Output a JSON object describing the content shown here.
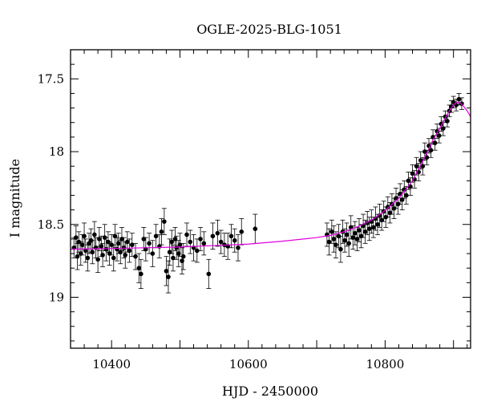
{
  "chart_data": {
    "type": "scatter",
    "title": "OGLE-2025-BLG-1051",
    "xlabel": "HJD - 2450000",
    "ylabel": "I magnitude",
    "xlim": [
      10340,
      10925
    ],
    "ylim": [
      19.35,
      17.3
    ],
    "y_inverted": true,
    "grid": false,
    "x_ticks": [
      10400,
      10600,
      10800
    ],
    "x_tick_labels": [
      "10400",
      "10600",
      "10800"
    ],
    "y_ticks": [
      17.5,
      18,
      18.5,
      19
    ],
    "y_tick_labels": [
      "17.5",
      "18",
      "18.5",
      "19"
    ],
    "colors": {
      "points": "#000000",
      "model": "#e000e0",
      "frame": "#000000"
    },
    "series": [
      {
        "kind": "points_with_errorbars",
        "points": [
          [
            10345,
            18.66,
            0.07
          ],
          [
            10348,
            18.59,
            0.08
          ],
          [
            10350,
            18.72,
            0.09
          ],
          [
            10352,
            18.62,
            0.07
          ],
          [
            10355,
            18.7,
            0.08
          ],
          [
            10357,
            18.64,
            0.07
          ],
          [
            10360,
            18.58,
            0.09
          ],
          [
            10362,
            18.68,
            0.08
          ],
          [
            10365,
            18.73,
            0.09
          ],
          [
            10367,
            18.63,
            0.07
          ],
          [
            10370,
            18.61,
            0.08
          ],
          [
            10372,
            18.69,
            0.08
          ],
          [
            10375,
            18.57,
            0.09
          ],
          [
            10377,
            18.66,
            0.07
          ],
          [
            10380,
            18.74,
            0.09
          ],
          [
            10382,
            18.6,
            0.08
          ],
          [
            10385,
            18.65,
            0.07
          ],
          [
            10387,
            18.71,
            0.08
          ],
          [
            10390,
            18.59,
            0.09
          ],
          [
            10392,
            18.67,
            0.08
          ],
          [
            10395,
            18.62,
            0.07
          ],
          [
            10397,
            18.7,
            0.08
          ],
          [
            10400,
            18.64,
            0.07
          ],
          [
            10403,
            18.73,
            0.09
          ],
          [
            10405,
            18.58,
            0.08
          ],
          [
            10408,
            18.67,
            0.08
          ],
          [
            10410,
            18.63,
            0.07
          ],
          [
            10413,
            18.69,
            0.08
          ],
          [
            10415,
            18.6,
            0.08
          ],
          [
            10418,
            18.66,
            0.07
          ],
          [
            10420,
            18.71,
            0.09
          ],
          [
            10423,
            18.62,
            0.07
          ],
          [
            10426,
            18.68,
            0.08
          ],
          [
            10430,
            18.64,
            0.08
          ],
          [
            10435,
            18.72,
            0.09
          ],
          [
            10440,
            18.8,
            0.1
          ],
          [
            10443,
            18.84,
            0.1
          ],
          [
            10447,
            18.6,
            0.08
          ],
          [
            10450,
            18.67,
            0.08
          ],
          [
            10455,
            18.63,
            0.07
          ],
          [
            10460,
            18.7,
            0.09
          ],
          [
            10465,
            18.58,
            0.08
          ],
          [
            10470,
            18.65,
            0.08
          ],
          [
            10473,
            18.55,
            0.09
          ],
          [
            10477,
            18.48,
            0.09
          ],
          [
            10480,
            18.82,
            0.1
          ],
          [
            10483,
            18.86,
            0.11
          ],
          [
            10485,
            18.69,
            0.09
          ],
          [
            10488,
            18.62,
            0.08
          ],
          [
            10490,
            18.73,
            0.09
          ],
          [
            10493,
            18.6,
            0.08
          ],
          [
            10495,
            18.66,
            0.08
          ],
          [
            10498,
            18.7,
            0.09
          ],
          [
            10500,
            18.64,
            0.08
          ],
          [
            10503,
            18.75,
            0.09
          ],
          [
            10505,
            18.72,
            0.09
          ],
          [
            10510,
            18.57,
            0.08
          ],
          [
            10515,
            18.62,
            0.08
          ],
          [
            10520,
            18.66,
            0.09
          ],
          [
            10525,
            18.68,
            0.08
          ],
          [
            10530,
            18.6,
            0.08
          ],
          [
            10535,
            18.63,
            0.08
          ],
          [
            10542,
            18.84,
            0.1
          ],
          [
            10548,
            18.58,
            0.09
          ],
          [
            10555,
            18.56,
            0.09
          ],
          [
            10560,
            18.62,
            0.08
          ],
          [
            10565,
            18.64,
            0.08
          ],
          [
            10570,
            18.65,
            0.09
          ],
          [
            10575,
            18.58,
            0.08
          ],
          [
            10580,
            18.61,
            0.08
          ],
          [
            10585,
            18.66,
            0.09
          ],
          [
            10590,
            18.55,
            0.09
          ],
          [
            10610,
            18.53,
            0.1
          ],
          [
            10715,
            18.57,
            0.08
          ],
          [
            10718,
            18.62,
            0.09
          ],
          [
            10722,
            18.55,
            0.08
          ],
          [
            10725,
            18.6,
            0.09
          ],
          [
            10728,
            18.64,
            0.09
          ],
          [
            10732,
            18.58,
            0.08
          ],
          [
            10735,
            18.67,
            0.09
          ],
          [
            10738,
            18.55,
            0.08
          ],
          [
            10741,
            18.61,
            0.08
          ],
          [
            10744,
            18.57,
            0.08
          ],
          [
            10747,
            18.63,
            0.09
          ],
          [
            10750,
            18.52,
            0.08
          ],
          [
            10753,
            18.59,
            0.08
          ],
          [
            10756,
            18.56,
            0.08
          ],
          [
            10759,
            18.6,
            0.08
          ],
          [
            10762,
            18.54,
            0.08
          ],
          [
            10765,
            18.58,
            0.08
          ],
          [
            10768,
            18.51,
            0.08
          ],
          [
            10771,
            18.55,
            0.08
          ],
          [
            10774,
            18.49,
            0.08
          ],
          [
            10777,
            18.53,
            0.08
          ],
          [
            10780,
            18.48,
            0.08
          ],
          [
            10783,
            18.52,
            0.07
          ],
          [
            10786,
            18.46,
            0.08
          ],
          [
            10789,
            18.5,
            0.07
          ],
          [
            10792,
            18.44,
            0.08
          ],
          [
            10795,
            18.47,
            0.07
          ],
          [
            10798,
            18.41,
            0.07
          ],
          [
            10801,
            18.45,
            0.07
          ],
          [
            10804,
            18.38,
            0.07
          ],
          [
            10807,
            18.42,
            0.07
          ],
          [
            10810,
            18.36,
            0.07
          ],
          [
            10813,
            18.39,
            0.07
          ],
          [
            10816,
            18.32,
            0.07
          ],
          [
            10819,
            18.36,
            0.07
          ],
          [
            10822,
            18.29,
            0.07
          ],
          [
            10825,
            18.33,
            0.07
          ],
          [
            10828,
            18.26,
            0.06
          ],
          [
            10831,
            18.3,
            0.06
          ],
          [
            10834,
            18.2,
            0.06
          ],
          [
            10837,
            18.24,
            0.06
          ],
          [
            10840,
            18.15,
            0.06
          ],
          [
            10843,
            18.19,
            0.06
          ],
          [
            10846,
            18.1,
            0.06
          ],
          [
            10849,
            18.14,
            0.06
          ],
          [
            10852,
            18.06,
            0.06
          ],
          [
            10855,
            18.1,
            0.06
          ],
          [
            10858,
            18.0,
            0.06
          ],
          [
            10861,
            18.04,
            0.05
          ],
          [
            10864,
            17.96,
            0.05
          ],
          [
            10867,
            17.99,
            0.05
          ],
          [
            10870,
            17.9,
            0.05
          ],
          [
            10873,
            17.94,
            0.05
          ],
          [
            10876,
            17.86,
            0.05
          ],
          [
            10879,
            17.89,
            0.05
          ],
          [
            10882,
            17.81,
            0.05
          ],
          [
            10885,
            17.84,
            0.05
          ],
          [
            10888,
            17.76,
            0.04
          ],
          [
            10891,
            17.79,
            0.04
          ],
          [
            10894,
            17.72,
            0.04
          ],
          [
            10897,
            17.69,
            0.04
          ],
          [
            10900,
            17.66,
            0.04
          ],
          [
            10904,
            17.68,
            0.04
          ],
          [
            10908,
            17.64,
            0.04
          ],
          [
            10912,
            17.67,
            0.04
          ]
        ]
      },
      {
        "kind": "model_curve",
        "x": [
          10340,
          10400,
          10450,
          10500,
          10550,
          10600,
          10650,
          10700,
          10720,
          10740,
          10760,
          10780,
          10800,
          10820,
          10840,
          10860,
          10870,
          10880,
          10890,
          10900,
          10905,
          10910,
          10915,
          10920,
          10925
        ],
        "y": [
          18.67,
          18.665,
          18.66,
          18.655,
          18.645,
          18.635,
          18.615,
          18.59,
          18.575,
          18.55,
          18.515,
          18.47,
          18.405,
          18.32,
          18.2,
          18.02,
          17.92,
          17.84,
          17.75,
          17.68,
          17.66,
          17.665,
          17.69,
          17.72,
          17.76
        ]
      }
    ]
  }
}
